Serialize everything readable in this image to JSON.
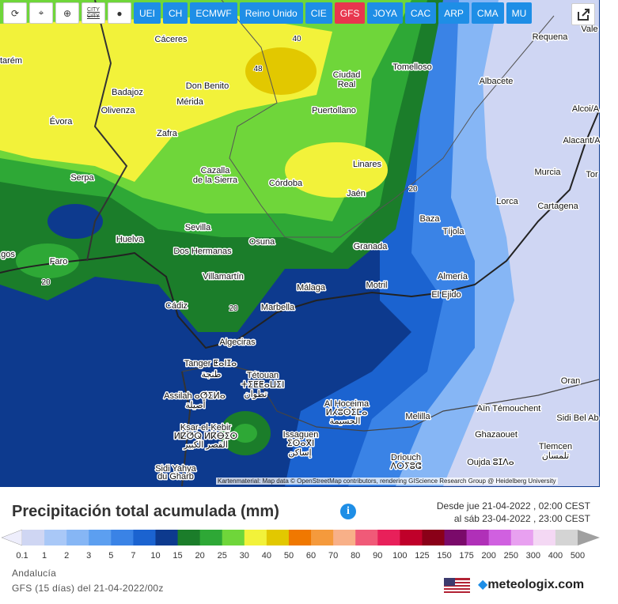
{
  "toolbar": {
    "city_icon": "CITY",
    "buttons": [
      "UEI",
      "CH",
      "ECMWF",
      "Reino Unido",
      "CIE",
      "GFS",
      "JOYA",
      "CAC",
      "ARP",
      "CMA",
      "MU"
    ],
    "active": "GFS"
  },
  "map": {
    "places": [
      "Cáceres",
      "Requena",
      "Vale",
      "tarém",
      "Tomelloso",
      "Ciudad",
      "Real",
      "Badajoz",
      "Don Benito",
      "Albacete",
      "Mérida",
      "Olivenza",
      "Puertollano",
      "Alcoi/A",
      "Évora",
      "Zafra",
      "Alacant/A",
      "Linares",
      "Cazalla",
      "de la Sierra",
      "Córdoba",
      "Murcia",
      "Tor",
      "Serpa",
      "Jaén",
      "Lorca",
      "Cartagena",
      "Baza",
      "Tíjola",
      "Sevilla",
      "Huelva",
      "Osuna",
      "Dos Hermanas",
      "gos",
      "Faro",
      "Granada",
      "Villamartín",
      "Almería",
      "Málaga",
      "Motril",
      "El Ejido",
      "Cádiz",
      "Marbella",
      "Algeciras",
      "Tanger ⵟⴰⵏⵊⴰ",
      "طنجة",
      "Tétouan",
      "ⵜⵉⵟⵟⴰⵡⵉⵏ",
      "تطوان",
      "Assilah ⴰⵚⵉⵍⴰ",
      "أصيلة",
      "Oran",
      "Al Hoceima",
      "ⵍⵃⵓⵙⵉⵎⴰ",
      "الحسيمة",
      "Aïn Témouchent",
      "Melilla",
      "Sidi Bel Ab",
      "Ksar-el-Kebir",
      "ⵍⵇⵚⵕ ⵍⴽⴱⵉⵔ",
      "القصر الكبير",
      "Ghazaouet",
      "Issaguen",
      "ⵉⵙⴰⴳⵏ",
      "إساكن",
      "Tlemcen",
      "تلمسان",
      "Driouch",
      "ⴷⵔⵢⵓⵛ",
      "Oujda ⵓⵊⴷⴰ",
      "Sidi Yahya",
      "du Gharb"
    ],
    "contour_labels": [
      40,
      48,
      20,
      20,
      20
    ],
    "attribution": "Kartenmaterial: Map data © OpenStreetMap contributors, rendering GIScience Research Group @ Heidelberg University"
  },
  "legend": {
    "title": "Precipitación total acumulada (mm)",
    "info": "i",
    "from": "Desde jue 21-04-2022 , 02:00 CEST",
    "to": "al sáb 23-04-2022 , 23:00 CEST",
    "below_color": "#eeeefc",
    "steps": [
      {
        "value": 0.1,
        "color": "#cfd6f3"
      },
      {
        "value": 1,
        "color": "#a9c8f7"
      },
      {
        "value": 2,
        "color": "#86b6f5"
      },
      {
        "value": 3,
        "color": "#5c9ff0"
      },
      {
        "value": 5,
        "color": "#3a83e6"
      },
      {
        "value": 7,
        "color": "#1b63d0"
      },
      {
        "value": 10,
        "color": "#0d3a8e"
      },
      {
        "value": 15,
        "color": "#1b7d2a"
      },
      {
        "value": 20,
        "color": "#2ea836"
      },
      {
        "value": 25,
        "color": "#6fd63a"
      },
      {
        "value": 30,
        "color": "#f2f23a"
      },
      {
        "value": 40,
        "color": "#e2c800"
      },
      {
        "value": 50,
        "color": "#f07800"
      },
      {
        "value": 60,
        "color": "#f59a3c"
      },
      {
        "value": 70,
        "color": "#f8b088"
      },
      {
        "value": 80,
        "color": "#f05a78"
      },
      {
        "value": 90,
        "color": "#e8205a"
      },
      {
        "value": 100,
        "color": "#c0002a"
      },
      {
        "value": 125,
        "color": "#8a0018"
      },
      {
        "value": 150,
        "color": "#7a0a6a"
      },
      {
        "value": 175,
        "color": "#b030b8"
      },
      {
        "value": 200,
        "color": "#d060e0"
      },
      {
        "value": 250,
        "color": "#e8a0f0"
      },
      {
        "value": 300,
        "color": "#f4d8f4"
      },
      {
        "value": 400,
        "color": "#d4d4d4"
      },
      {
        "value": 500,
        "color": "#a0a0a0"
      }
    ]
  },
  "footer": {
    "region": "Andalucía",
    "model": "GFS (15 días) del 21-04-2022/00z",
    "brand": "meteologix.com"
  }
}
